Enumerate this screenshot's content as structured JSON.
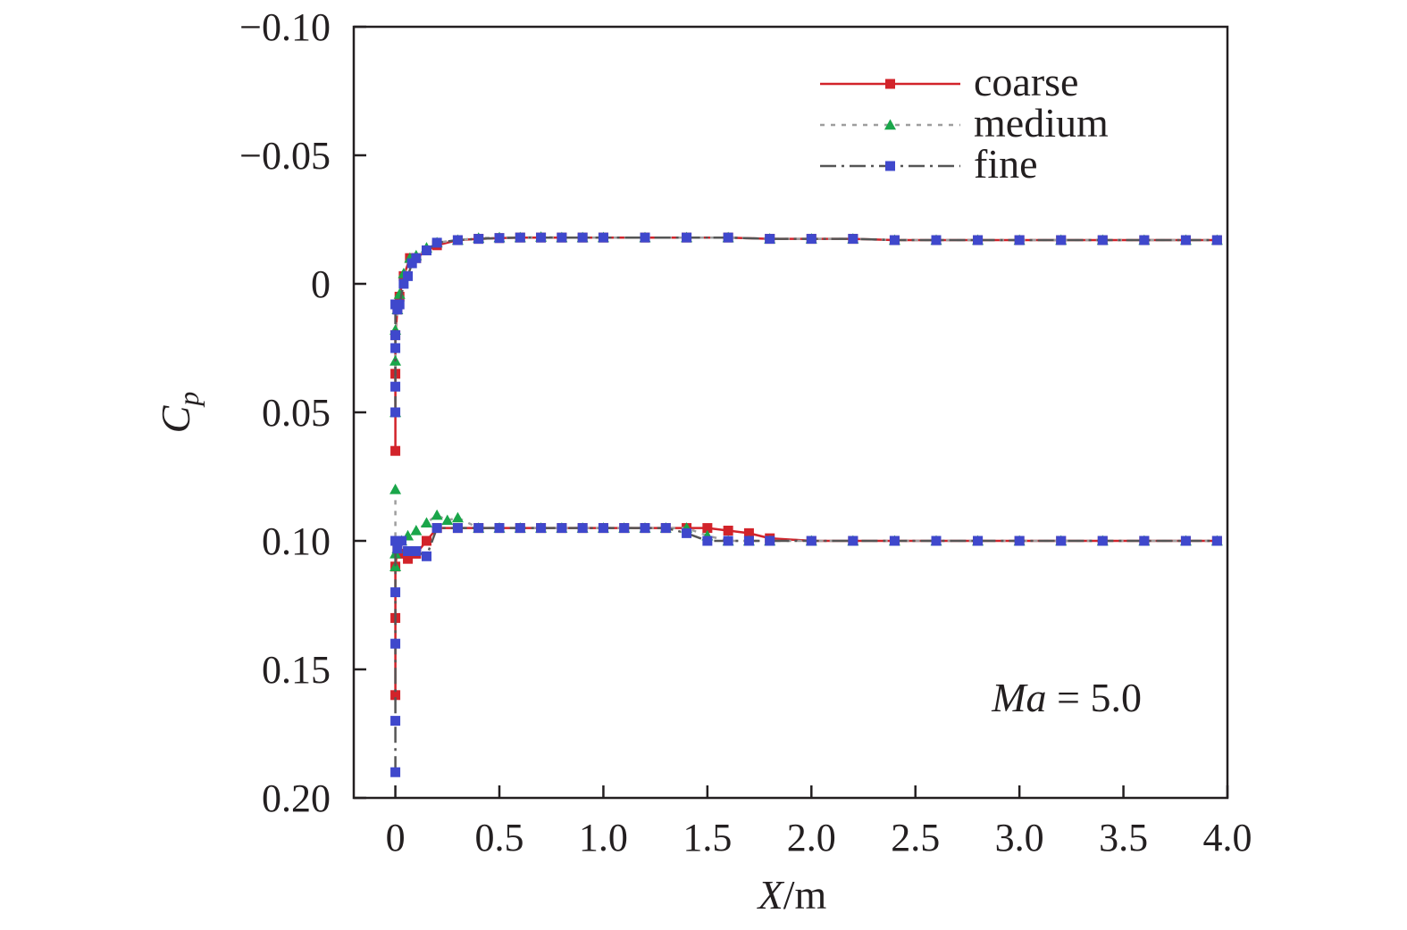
{
  "chart_data": {
    "type": "line",
    "title": "",
    "xlabel": "X/m",
    "ylabel": "Cp",
    "xlim": [
      -0.2,
      4.0
    ],
    "ylim": [
      0.2,
      -0.1
    ],
    "y_inverted": true,
    "xticks": [
      0,
      0.5,
      1.0,
      1.5,
      2.0,
      2.5,
      3.0,
      3.5,
      4.0
    ],
    "xtick_labels": [
      "0",
      "0.5",
      "1.0",
      "1.5",
      "2.0",
      "2.5",
      "3.0",
      "3.5",
      "4.0"
    ],
    "yticks": [
      -0.1,
      -0.05,
      0,
      0.05,
      0.1,
      0.15,
      0.2
    ],
    "ytick_labels": [
      "−0.10",
      "−0.05",
      "0",
      "0.05",
      "0.10",
      "0.15",
      "0.20"
    ],
    "grid": false,
    "legend_position": "top-right",
    "annotation": {
      "text_italic": "Ma",
      "text_rest": " = 5.0"
    },
    "colors": {
      "coarse": "#d2232a",
      "medium_line": "#9e9e9e",
      "medium_marker": "#1aa64a",
      "fine": "#3f48cc",
      "fine_line": "#555555"
    },
    "series": [
      {
        "name": "coarse",
        "line_style": "solid",
        "marker": "square",
        "upper": {
          "x": [
            0,
            0,
            0,
            0.01,
            0.02,
            0.04,
            0.07,
            0.1,
            0.15,
            0.2,
            0.3,
            0.4,
            0.5,
            0.6,
            0.7,
            0.8,
            0.9,
            1.0,
            1.2,
            1.4,
            1.6,
            1.8,
            2.0,
            2.2,
            2.4,
            2.6,
            2.8,
            3.0,
            3.2,
            3.4,
            3.6,
            3.8,
            3.95
          ],
          "y": [
            0.065,
            0.035,
            0.02,
            0.01,
            0.005,
            -0.003,
            -0.01,
            -0.01,
            -0.013,
            -0.015,
            -0.017,
            -0.0175,
            -0.0178,
            -0.018,
            -0.018,
            -0.018,
            -0.018,
            -0.018,
            -0.018,
            -0.018,
            -0.018,
            -0.0175,
            -0.0175,
            -0.0175,
            -0.017,
            -0.017,
            -0.017,
            -0.017,
            -0.017,
            -0.017,
            -0.017,
            -0.017,
            -0.017
          ]
        },
        "lower": {
          "x": [
            0,
            0,
            0,
            0.01,
            0.03,
            0.06,
            0.1,
            0.15,
            0.2,
            0.3,
            0.4,
            0.5,
            0.6,
            0.7,
            0.8,
            0.9,
            1.0,
            1.1,
            1.2,
            1.3,
            1.4,
            1.5,
            1.6,
            1.7,
            1.8,
            2.0,
            2.2,
            2.4,
            2.6,
            2.8,
            3.0,
            3.2,
            3.4,
            3.6,
            3.8,
            3.95
          ],
          "y": [
            0.16,
            0.13,
            0.11,
            0.103,
            0.105,
            0.107,
            0.105,
            0.1,
            0.095,
            0.095,
            0.095,
            0.095,
            0.095,
            0.095,
            0.095,
            0.095,
            0.095,
            0.095,
            0.095,
            0.095,
            0.095,
            0.095,
            0.096,
            0.097,
            0.099,
            0.1,
            0.1,
            0.1,
            0.1,
            0.1,
            0.1,
            0.1,
            0.1,
            0.1,
            0.1,
            0.1
          ]
        }
      },
      {
        "name": "medium",
        "line_style": "dotted",
        "marker": "triangle",
        "upper": {
          "x": [
            0,
            0,
            0,
            0.01,
            0.02,
            0.04,
            0.07,
            0.1,
            0.15,
            0.2,
            0.3,
            0.4,
            0.5,
            0.6,
            0.7,
            0.8,
            0.9,
            1.0,
            1.2,
            1.4,
            1.6,
            1.8,
            2.0,
            2.2,
            2.4,
            2.6,
            2.8,
            3.0,
            3.2,
            3.4,
            3.6,
            3.8,
            3.95
          ],
          "y": [
            0.05,
            0.03,
            0.018,
            0.01,
            0.004,
            -0.004,
            -0.01,
            -0.011,
            -0.014,
            -0.016,
            -0.017,
            -0.0178,
            -0.018,
            -0.018,
            -0.0182,
            -0.018,
            -0.018,
            -0.018,
            -0.018,
            -0.018,
            -0.018,
            -0.0175,
            -0.0175,
            -0.0175,
            -0.017,
            -0.017,
            -0.017,
            -0.017,
            -0.017,
            -0.017,
            -0.017,
            -0.017,
            -0.017
          ]
        },
        "lower": {
          "x": [
            0,
            0,
            0,
            0.01,
            0.03,
            0.06,
            0.1,
            0.15,
            0.2,
            0.25,
            0.3,
            0.4,
            0.5,
            0.6,
            0.7,
            0.8,
            0.9,
            1.0,
            1.1,
            1.2,
            1.3,
            1.4,
            1.5,
            1.6,
            1.7,
            1.8,
            2.0,
            2.2,
            2.4,
            2.6,
            2.8,
            3.0,
            3.2,
            3.4,
            3.6,
            3.8,
            3.95
          ],
          "y": [
            0.08,
            0.11,
            0.105,
            0.103,
            0.1,
            0.098,
            0.096,
            0.093,
            0.09,
            0.092,
            0.091,
            0.095,
            0.095,
            0.095,
            0.095,
            0.095,
            0.095,
            0.095,
            0.095,
            0.095,
            0.095,
            0.095,
            0.098,
            0.1,
            0.1,
            0.1,
            0.1,
            0.1,
            0.1,
            0.1,
            0.1,
            0.1,
            0.1,
            0.1,
            0.1,
            0.1,
            0.1
          ]
        }
      },
      {
        "name": "fine",
        "line_style": "dash-dot",
        "marker": "square",
        "upper": {
          "x": [
            0,
            0,
            0,
            0,
            0,
            0.01,
            0.02,
            0.04,
            0.06,
            0.08,
            0.1,
            0.15,
            0.2,
            0.3,
            0.4,
            0.5,
            0.6,
            0.7,
            0.8,
            0.9,
            1.0,
            1.2,
            1.4,
            1.6,
            1.8,
            2.0,
            2.2,
            2.4,
            2.6,
            2.8,
            3.0,
            3.2,
            3.4,
            3.6,
            3.8,
            3.95
          ],
          "y": [
            0.05,
            0.04,
            0.025,
            0.02,
            0.008,
            0.01,
            0.008,
            0.0,
            -0.003,
            -0.008,
            -0.01,
            -0.013,
            -0.016,
            -0.017,
            -0.0175,
            -0.0178,
            -0.018,
            -0.018,
            -0.018,
            -0.018,
            -0.018,
            -0.018,
            -0.018,
            -0.018,
            -0.0175,
            -0.0175,
            -0.0175,
            -0.017,
            -0.017,
            -0.017,
            -0.017,
            -0.017,
            -0.017,
            -0.017,
            -0.017,
            -0.017
          ]
        },
        "lower": {
          "x": [
            0,
            0,
            0,
            0,
            0,
            0.01,
            0.03,
            0.06,
            0.1,
            0.15,
            0.2,
            0.3,
            0.4,
            0.5,
            0.6,
            0.7,
            0.8,
            0.9,
            1.0,
            1.1,
            1.2,
            1.3,
            1.4,
            1.5,
            1.6,
            1.7,
            1.8,
            2.0,
            2.2,
            2.4,
            2.6,
            2.8,
            3.0,
            3.2,
            3.4,
            3.6,
            3.8,
            3.95
          ],
          "y": [
            0.19,
            0.17,
            0.14,
            0.12,
            0.1,
            0.103,
            0.1,
            0.104,
            0.104,
            0.106,
            0.095,
            0.095,
            0.095,
            0.095,
            0.095,
            0.095,
            0.095,
            0.095,
            0.095,
            0.095,
            0.095,
            0.095,
            0.097,
            0.1,
            0.1,
            0.1,
            0.1,
            0.1,
            0.1,
            0.1,
            0.1,
            0.1,
            0.1,
            0.1,
            0.1,
            0.1,
            0.1,
            0.1
          ]
        }
      }
    ]
  }
}
